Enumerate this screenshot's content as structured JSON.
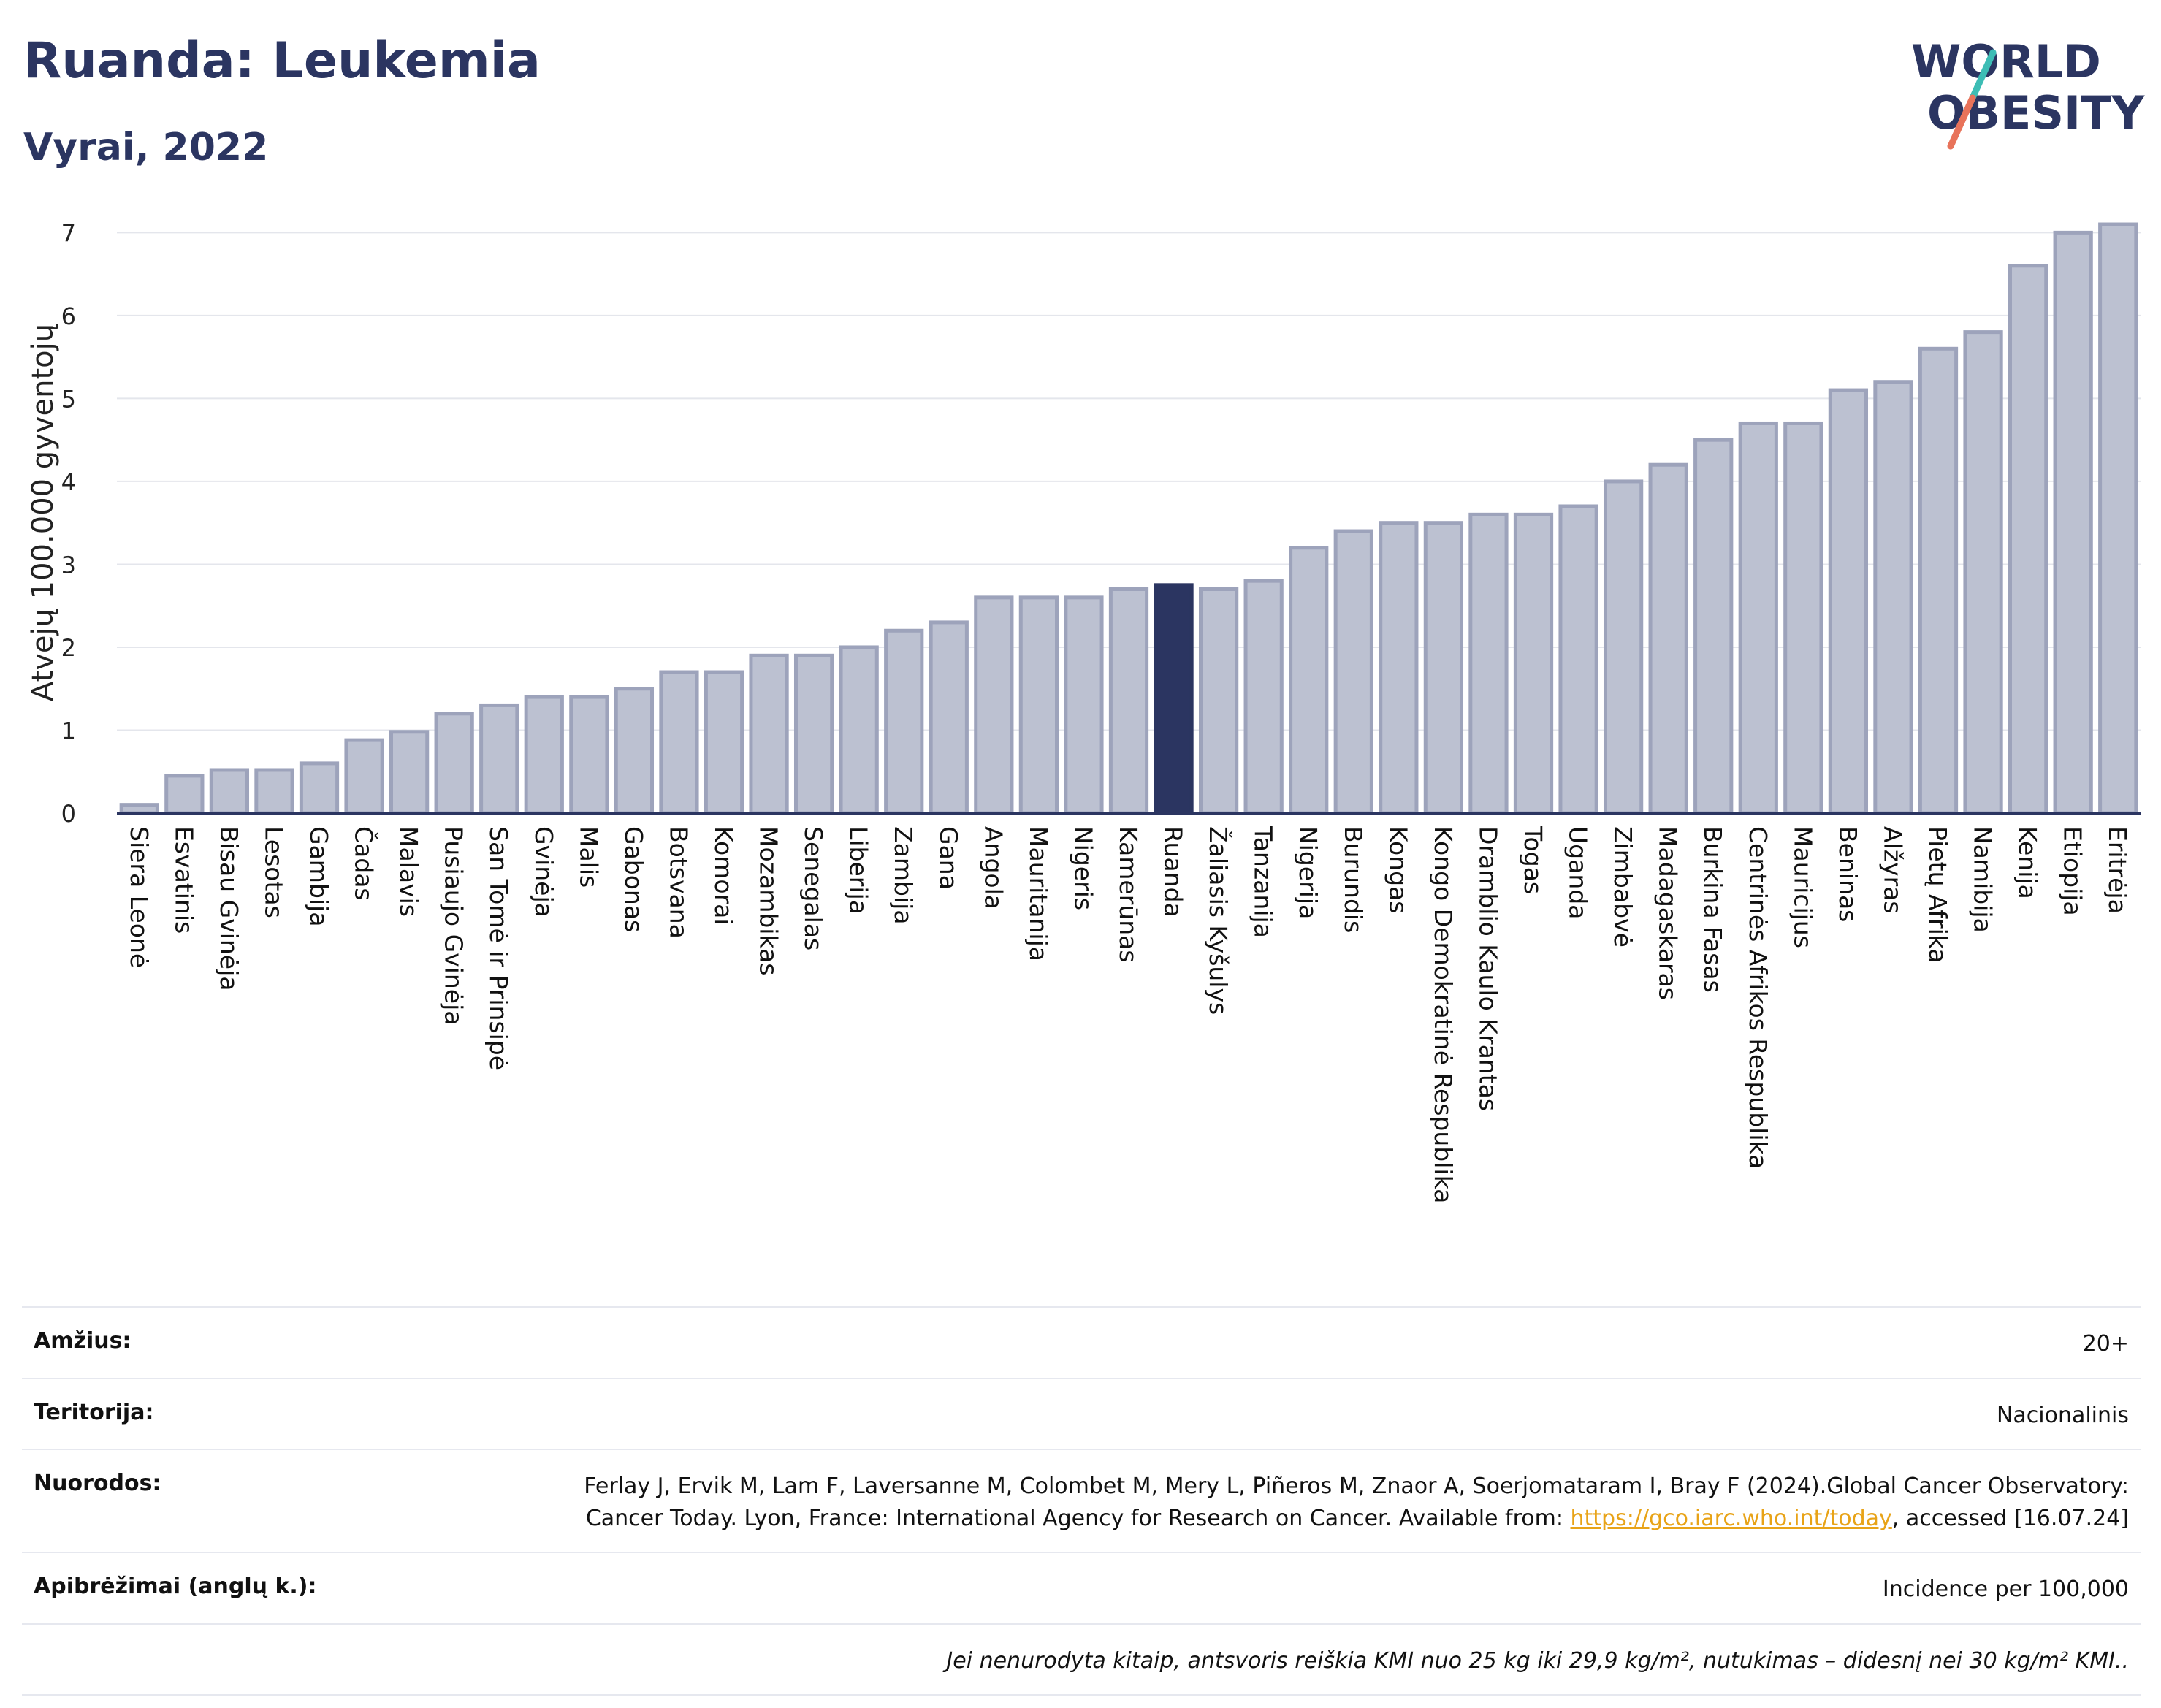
{
  "header": {
    "title": "Ruanda: Leukemia",
    "subtitle": "Vyrai, 2022",
    "logo_line1": "WORLD",
    "logo_line2": "OBESITY"
  },
  "colors": {
    "bar": "#bcc1d1",
    "bar_stroke": "#9da3bb",
    "highlight": "#2b3561",
    "accent_teal": "#3dbdb5",
    "accent_coral": "#e8735a"
  },
  "chart_data": {
    "type": "bar",
    "ylabel": "Atvejų 100.000 gyventojų",
    "ylim": [
      0,
      7.25
    ],
    "yticks": [
      0,
      1,
      2,
      3,
      4,
      5,
      6,
      7
    ],
    "grid": true,
    "highlight": "Ruanda",
    "categories": [
      "Siera Leonė",
      "Esvatinis",
      "Bisau Gvinėja",
      "Lesotas",
      "Gambija",
      "Čadas",
      "Malavis",
      "Pusiaujo Gvinėja",
      "San Tomė ir Prinsipė",
      "Gvinėja",
      "Malis",
      "Gabonas",
      "Botsvana",
      "Komorai",
      "Mozambikas",
      "Senegalas",
      "Liberija",
      "Zambija",
      "Gana",
      "Angola",
      "Mauritanija",
      "Nigeris",
      "Kamerūnas",
      "Ruanda",
      "Žaliasis Kyšulys",
      "Tanzanija",
      "Nigerija",
      "Burundis",
      "Kongas",
      "Kongo Demokratinė Respublika",
      "Dramblio Kaulo Krantas",
      "Togas",
      "Uganda",
      "Zimbabvė",
      "Madagaskaras",
      "Burkina Fasas",
      "Centrinės Afrikos Respublika",
      "Mauricijus",
      "Beninas",
      "Alžyras",
      "Pietų Afrika",
      "Namibija",
      "Kenija",
      "Etiopija",
      "Eritrėja"
    ],
    "values": [
      0.1,
      0.45,
      0.52,
      0.52,
      0.6,
      0.88,
      0.98,
      1.2,
      1.3,
      1.4,
      1.4,
      1.5,
      1.7,
      1.7,
      1.9,
      1.9,
      2.0,
      2.2,
      2.3,
      2.6,
      2.6,
      2.6,
      2.7,
      2.75,
      2.7,
      2.8,
      3.2,
      3.4,
      3.5,
      3.5,
      3.6,
      3.6,
      3.7,
      4.0,
      4.2,
      4.5,
      4.7,
      4.7,
      5.1,
      5.2,
      5.6,
      5.8,
      6.6,
      7.0,
      7.1
    ]
  },
  "meta": {
    "age_label": "Amžius:",
    "age_value": "20+",
    "territory_label": "Teritorija:",
    "territory_value": "Nacionalinis",
    "refs_label": "Nuorodos:",
    "refs_text": "Ferlay J, Ervik M, Lam F, Laversanne M, Colombet M, Mery L, Piñeros M, Znaor A, Soerjomataram I, Bray F (2024).Global Cancer Observatory: Cancer Today. Lyon, France: International Agency for Research on Cancer. Available from: ",
    "refs_link": "https://gco.iarc.who.int/today",
    "refs_after": ", accessed [16.07.24]",
    "defs_label": "Apibrėžimai (anglų k.):",
    "defs_value": "Incidence per 100,000",
    "note": "Jei nenurodyta kitaip, antsvoris reiškia KMI nuo 25 kg iki 29,9 kg/m², nutukimas – didesnį nei 30 kg/m² KMI.."
  }
}
